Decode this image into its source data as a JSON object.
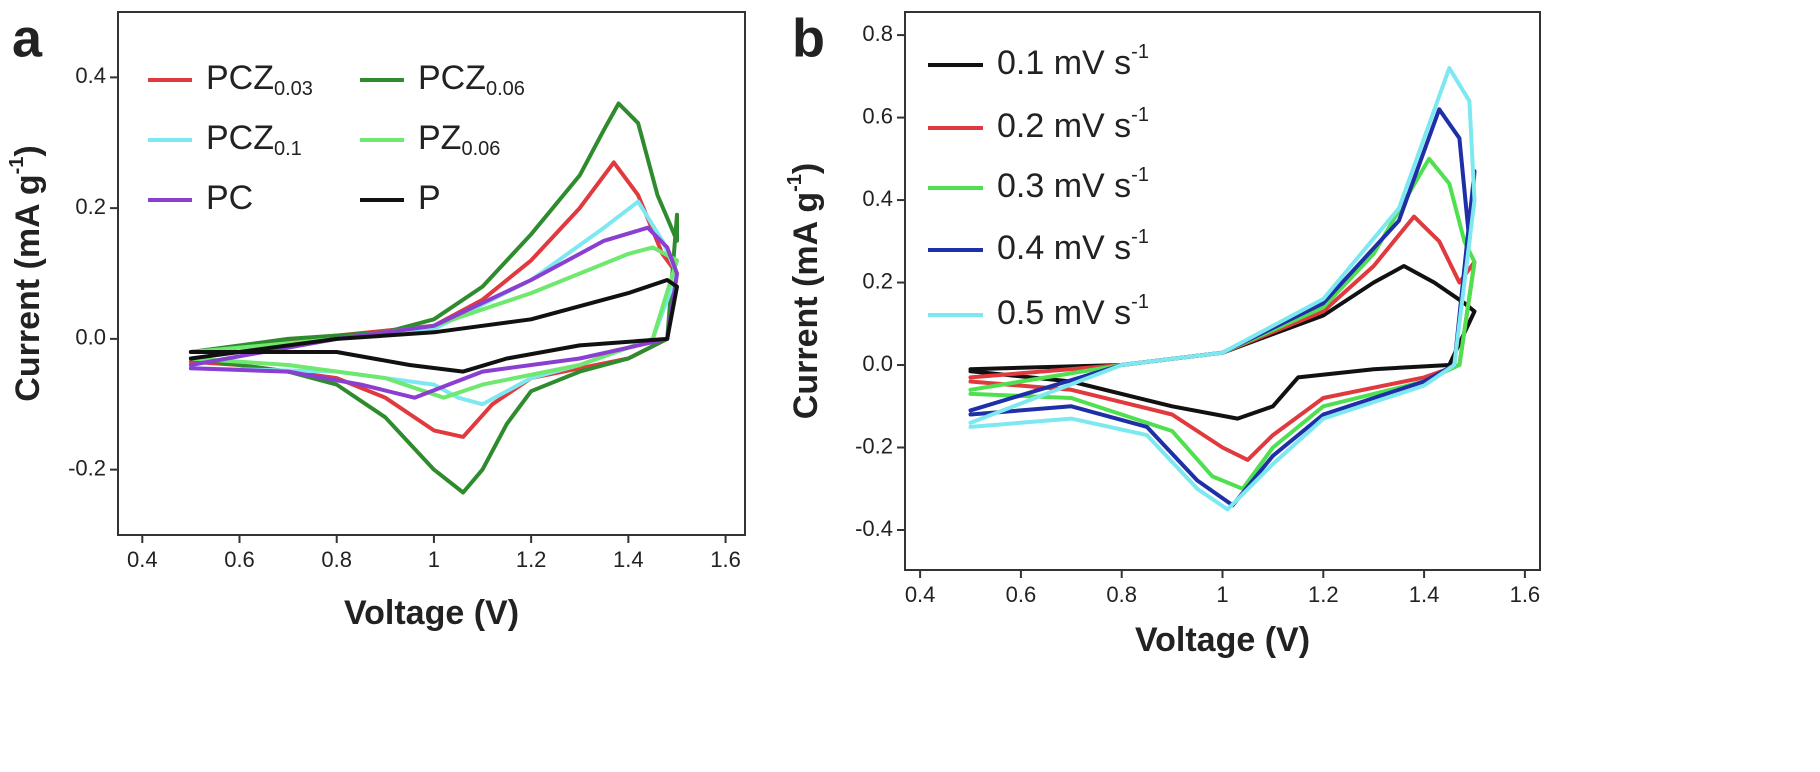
{
  "chart_data": [
    {
      "type": "line",
      "panel_label": "a",
      "xlabel": "Voltage (V)",
      "ylabel": "Current (mA g",
      "ylabel_superscript": "-1",
      "ylabel_end": ")",
      "xlim": [
        0.35,
        1.64
      ],
      "ylim": [
        -0.3,
        0.5
      ],
      "xticks": [
        0.4,
        0.6,
        0.8,
        1.0,
        1.2,
        1.4,
        1.6
      ],
      "yticks": [
        {
          "value": -0.2,
          "label": "-0.2"
        },
        {
          "value": 0.0,
          "label": "0.0"
        },
        0.2,
        0.4
      ],
      "series": [
        {
          "name": "PCZ",
          "subscript": "0.03",
          "color": "#e0393e",
          "x": [
            0.5,
            0.8,
            1.0,
            1.1,
            1.2,
            1.3,
            1.37,
            1.42,
            1.47,
            1.5,
            1.48,
            1.4,
            1.2,
            1.12,
            1.06,
            1.0,
            0.9,
            0.8,
            0.6,
            0.5
          ],
          "values": [
            -0.02,
            0.005,
            0.02,
            0.06,
            0.12,
            0.2,
            0.27,
            0.22,
            0.13,
            0.1,
            0.0,
            -0.03,
            -0.06,
            -0.1,
            -0.15,
            -0.14,
            -0.09,
            -0.06,
            -0.04,
            -0.035
          ]
        },
        {
          "name": "PCZ",
          "subscript": "0.06",
          "color": "#2e8b2e",
          "x": [
            0.5,
            0.7,
            0.9,
            1.0,
            1.1,
            1.2,
            1.3,
            1.35,
            1.38,
            1.42,
            1.46,
            1.5,
            1.5,
            1.48,
            1.4,
            1.3,
            1.2,
            1.15,
            1.1,
            1.06,
            1.0,
            0.9,
            0.8,
            0.7,
            0.6,
            0.5
          ],
          "values": [
            -0.02,
            0.0,
            0.01,
            0.03,
            0.08,
            0.16,
            0.25,
            0.32,
            0.36,
            0.33,
            0.22,
            0.15,
            0.19,
            0.0,
            -0.03,
            -0.05,
            -0.08,
            -0.13,
            -0.2,
            -0.235,
            -0.2,
            -0.12,
            -0.07,
            -0.05,
            -0.04,
            -0.03
          ]
        },
        {
          "name": "PCZ",
          "subscript": "0.1",
          "color": "#7ee8f0",
          "x": [
            0.5,
            0.8,
            1.0,
            1.2,
            1.35,
            1.42,
            1.47,
            1.5,
            1.45,
            1.3,
            1.2,
            1.1,
            1.05,
            1.0,
            0.8,
            0.5
          ],
          "values": [
            -0.03,
            0.0,
            0.015,
            0.09,
            0.17,
            0.21,
            0.15,
            0.1,
            0.0,
            -0.04,
            -0.06,
            -0.1,
            -0.09,
            -0.07,
            -0.05,
            -0.045
          ]
        },
        {
          "name": "PZ",
          "subscript": "0.06",
          "color": "#6ee86e",
          "x": [
            0.5,
            0.8,
            1.0,
            1.2,
            1.4,
            1.45,
            1.5,
            1.45,
            1.3,
            1.1,
            1.02,
            0.9,
            0.7,
            0.5
          ],
          "values": [
            -0.02,
            0.0,
            0.02,
            0.07,
            0.13,
            0.14,
            0.12,
            0.0,
            -0.04,
            -0.07,
            -0.09,
            -0.06,
            -0.04,
            -0.03
          ]
        },
        {
          "name": "PC",
          "color": "#8a3fd0",
          "x": [
            0.5,
            0.8,
            1.0,
            1.2,
            1.35,
            1.44,
            1.48,
            1.5,
            1.48,
            1.3,
            1.1,
            0.96,
            0.85,
            0.7,
            0.5
          ],
          "values": [
            -0.04,
            0.0,
            0.02,
            0.09,
            0.15,
            0.17,
            0.14,
            0.1,
            0.0,
            -0.03,
            -0.05,
            -0.09,
            -0.07,
            -0.05,
            -0.045
          ]
        },
        {
          "name": "P",
          "color": "#111111",
          "x": [
            0.5,
            0.8,
            1.0,
            1.2,
            1.4,
            1.48,
            1.5,
            1.48,
            1.3,
            1.15,
            1.06,
            0.95,
            0.8,
            0.5
          ],
          "values": [
            -0.03,
            0.0,
            0.01,
            0.03,
            0.07,
            0.09,
            0.08,
            0.0,
            -0.01,
            -0.03,
            -0.05,
            -0.04,
            -0.02,
            -0.02
          ]
        }
      ]
    },
    {
      "type": "line",
      "panel_label": "b",
      "xlabel": "Voltage (V)",
      "ylabel": "Current (mA g",
      "ylabel_superscript": "-1",
      "ylabel_end": ")",
      "xlim": [
        0.37,
        1.63
      ],
      "ylim": [
        -0.497,
        0.856
      ],
      "xticks": [
        0.4,
        0.6,
        0.8,
        1.0,
        1.2,
        1.4,
        1.6
      ],
      "yticks": [
        {
          "value": -0.4,
          "label": "-0.4"
        },
        {
          "value": -0.2,
          "label": "-0.2"
        },
        {
          "value": 0.0,
          "label": "0.0"
        },
        0.2,
        0.4,
        0.6,
        0.8
      ],
      "series": [
        {
          "name": "0.1 mV s",
          "superscript": "-1",
          "color": "#111111",
          "x": [
            0.5,
            0.8,
            1.0,
            1.2,
            1.3,
            1.36,
            1.42,
            1.48,
            1.5,
            1.45,
            1.3,
            1.15,
            1.1,
            1.03,
            0.9,
            0.7,
            0.5
          ],
          "values": [
            -0.01,
            0.0,
            0.03,
            0.12,
            0.2,
            0.24,
            0.2,
            0.15,
            0.13,
            0.0,
            -0.01,
            -0.03,
            -0.1,
            -0.13,
            -0.1,
            -0.04,
            -0.015
          ]
        },
        {
          "name": "0.2 mV s",
          "superscript": "-1",
          "color": "#e0393e",
          "x": [
            0.5,
            0.8,
            1.0,
            1.2,
            1.3,
            1.38,
            1.43,
            1.47,
            1.5,
            1.47,
            1.4,
            1.2,
            1.1,
            1.05,
            1.0,
            0.9,
            0.7,
            0.5
          ],
          "values": [
            -0.03,
            0.0,
            0.03,
            0.13,
            0.24,
            0.36,
            0.3,
            0.2,
            0.25,
            0.0,
            -0.03,
            -0.08,
            -0.17,
            -0.23,
            -0.2,
            -0.12,
            -0.06,
            -0.04
          ]
        },
        {
          "name": "0.3 mV s",
          "superscript": "-1",
          "color": "#4fe04f",
          "x": [
            0.5,
            0.8,
            1.0,
            1.2,
            1.3,
            1.41,
            1.45,
            1.48,
            1.5,
            1.47,
            1.4,
            1.2,
            1.1,
            1.04,
            0.98,
            0.9,
            0.7,
            0.5
          ],
          "values": [
            -0.06,
            0.0,
            0.03,
            0.14,
            0.27,
            0.5,
            0.44,
            0.3,
            0.25,
            0.0,
            -0.04,
            -0.1,
            -0.2,
            -0.3,
            -0.27,
            -0.16,
            -0.08,
            -0.07
          ]
        },
        {
          "name": "0.4 mV s",
          "superscript": "-1",
          "color": "#1f2fa8",
          "x": [
            0.5,
            0.8,
            1.0,
            1.2,
            1.35,
            1.43,
            1.47,
            1.49,
            1.5,
            1.46,
            1.4,
            1.2,
            1.1,
            1.02,
            0.95,
            0.85,
            0.7,
            0.5
          ],
          "values": [
            -0.11,
            0.0,
            0.03,
            0.15,
            0.35,
            0.62,
            0.55,
            0.3,
            0.47,
            0.0,
            -0.04,
            -0.12,
            -0.22,
            -0.34,
            -0.28,
            -0.15,
            -0.1,
            -0.12
          ]
        },
        {
          "name": "0.5 mV s",
          "superscript": "-1",
          "color": "#7ee8f0",
          "x": [
            0.5,
            0.8,
            1.0,
            1.2,
            1.35,
            1.45,
            1.49,
            1.5,
            1.46,
            1.4,
            1.2,
            1.1,
            1.01,
            0.95,
            0.85,
            0.7,
            0.5
          ],
          "values": [
            -0.14,
            0.0,
            0.03,
            0.16,
            0.38,
            0.72,
            0.64,
            0.4,
            0.0,
            -0.05,
            -0.13,
            -0.24,
            -0.35,
            -0.3,
            -0.17,
            -0.13,
            -0.15
          ]
        }
      ]
    }
  ]
}
